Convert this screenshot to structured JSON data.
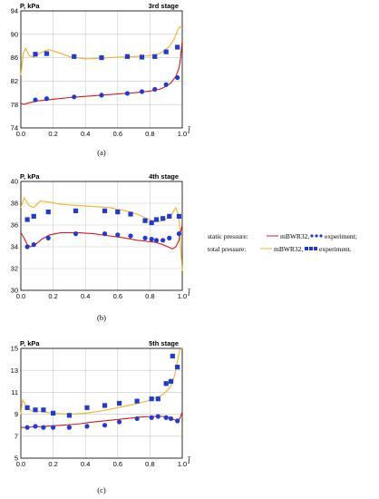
{
  "colors": {
    "static_line": "#d7191c",
    "total_line": "#f0b428",
    "static_exp": "#1f3bd6",
    "total_exp": "#1f3bd6",
    "grid": "#c8c8c8"
  },
  "legend": {
    "static_label": "static pressure:",
    "static_model": "mBWR32,",
    "static_exp": "experiment;",
    "total_label": "total pressure:",
    "total_model": "mBWR32,",
    "total_exp": "experiment."
  },
  "chart_data": [
    {
      "type": "line",
      "caption": "(a)",
      "panel_label": "3rd stage",
      "ylabel": "P, kPa",
      "xlabel": "l̄",
      "xlim": [
        0.0,
        1.0
      ],
      "ylim": [
        74,
        94
      ],
      "xticks": [
        "0.0",
        "0.2",
        "0.4",
        "0.6",
        "0.8",
        "1.0"
      ],
      "yticks": [
        "74",
        "78",
        "82",
        "86",
        "90",
        "94"
      ],
      "grid": true,
      "series": [
        {
          "name": "total pressure: mBWR32",
          "kind": "line",
          "color_key": "total_line",
          "x": [
            0.0,
            0.015,
            0.03,
            0.05,
            0.08,
            0.12,
            0.17,
            0.23,
            0.3,
            0.4,
            0.5,
            0.6,
            0.7,
            0.78,
            0.84,
            0.88,
            0.92,
            0.95,
            0.97,
            0.985,
            1.0
          ],
          "y": [
            83.0,
            86.8,
            87.6,
            86.4,
            86.1,
            86.8,
            87.4,
            86.9,
            86.2,
            85.8,
            85.9,
            86.1,
            86.2,
            86.3,
            86.5,
            87.0,
            87.9,
            89.2,
            90.6,
            91.3,
            91.1
          ]
        },
        {
          "name": "static pressure: mBWR32",
          "kind": "line",
          "color_key": "static_line",
          "x": [
            0.0,
            0.02,
            0.05,
            0.1,
            0.2,
            0.3,
            0.4,
            0.5,
            0.6,
            0.7,
            0.8,
            0.86,
            0.9,
            0.93,
            0.96,
            0.98,
            0.99,
            1.0
          ],
          "y": [
            78.2,
            78.0,
            78.3,
            78.6,
            78.9,
            79.2,
            79.4,
            79.6,
            79.8,
            80.0,
            80.3,
            80.6,
            81.1,
            81.7,
            82.8,
            84.2,
            86.0,
            89.0
          ]
        },
        {
          "name": "total pressure: experiment",
          "kind": "square",
          "color_key": "total_exp",
          "x": [
            0.09,
            0.16,
            0.33,
            0.5,
            0.66,
            0.75,
            0.83,
            0.9,
            0.97
          ],
          "y": [
            86.6,
            86.7,
            86.2,
            86.0,
            86.2,
            86.1,
            86.2,
            87.0,
            87.8
          ]
        },
        {
          "name": "static pressure: experiment",
          "kind": "circle",
          "color_key": "static_exp",
          "x": [
            0.09,
            0.16,
            0.33,
            0.5,
            0.66,
            0.75,
            0.83,
            0.9,
            0.97
          ],
          "y": [
            78.8,
            79.0,
            79.3,
            79.6,
            79.9,
            80.2,
            80.6,
            81.4,
            82.6
          ]
        }
      ]
    },
    {
      "type": "line",
      "caption": "(b)",
      "panel_label": "4th stage",
      "ylabel": "P, kPa",
      "xlabel": "l̄",
      "xlim": [
        0.0,
        1.0
      ],
      "ylim": [
        30,
        40
      ],
      "xticks": [
        "0.0",
        "0.2",
        "0.4",
        "0.6",
        "0.8",
        "1.0"
      ],
      "yticks": [
        "30",
        "32",
        "34",
        "36",
        "38",
        "40"
      ],
      "grid": true,
      "series": [
        {
          "name": "total pressure: mBWR32",
          "kind": "line",
          "color_key": "total_line",
          "x": [
            0.0,
            0.02,
            0.05,
            0.08,
            0.12,
            0.18,
            0.25,
            0.35,
            0.45,
            0.55,
            0.65,
            0.72,
            0.78,
            0.84,
            0.88,
            0.91,
            0.94,
            0.96,
            0.98,
            0.99,
            1.0
          ],
          "y": [
            37.6,
            38.5,
            37.8,
            37.6,
            38.2,
            38.1,
            37.9,
            37.8,
            37.7,
            37.6,
            37.3,
            37.0,
            36.6,
            36.3,
            36.4,
            36.6,
            37.1,
            37.6,
            36.8,
            34.0,
            31.8
          ]
        },
        {
          "name": "static pressure: mBWR32",
          "kind": "line",
          "color_key": "static_line",
          "x": [
            0.0,
            0.02,
            0.04,
            0.06,
            0.09,
            0.13,
            0.18,
            0.25,
            0.35,
            0.45,
            0.55,
            0.65,
            0.72,
            0.78,
            0.84,
            0.88,
            0.91,
            0.94,
            0.96,
            0.98,
            0.99,
            1.0
          ],
          "y": [
            35.3,
            34.8,
            34.2,
            34.0,
            34.2,
            34.7,
            35.1,
            35.3,
            35.3,
            35.2,
            35.0,
            34.8,
            34.6,
            34.5,
            34.4,
            34.2,
            34.0,
            33.8,
            34.0,
            34.6,
            35.4,
            36.0
          ]
        },
        {
          "name": "total pressure: experiment",
          "kind": "square",
          "color_key": "total_exp",
          "x": [
            0.04,
            0.08,
            0.17,
            0.34,
            0.52,
            0.6,
            0.68,
            0.77,
            0.81,
            0.84,
            0.88,
            0.92,
            0.98
          ],
          "y": [
            36.5,
            36.8,
            37.2,
            37.3,
            37.3,
            37.2,
            37.0,
            36.4,
            36.2,
            36.5,
            36.6,
            36.8,
            36.8
          ]
        },
        {
          "name": "static pressure: experiment",
          "kind": "circle",
          "color_key": "static_exp",
          "x": [
            0.04,
            0.08,
            0.17,
            0.34,
            0.52,
            0.6,
            0.68,
            0.77,
            0.81,
            0.84,
            0.88,
            0.92,
            0.98
          ],
          "y": [
            34.0,
            34.2,
            34.8,
            35.2,
            35.2,
            35.1,
            35.0,
            34.8,
            34.7,
            34.6,
            34.6,
            34.8,
            35.2
          ]
        }
      ]
    },
    {
      "type": "line",
      "caption": "(c)",
      "panel_label": "5th stage",
      "ylabel": "P, kPa",
      "xlabel": "l̄",
      "xlim": [
        0.0,
        1.0
      ],
      "ylim": [
        5,
        15
      ],
      "xticks": [
        "0.0",
        "0.2",
        "0.4",
        "0.6",
        "0.8",
        "1.0"
      ],
      "yticks": [
        "5",
        "7",
        "9",
        "11",
        "13",
        "15"
      ],
      "grid": true,
      "series": [
        {
          "name": "total pressure: mBWR32",
          "kind": "line",
          "color_key": "total_line",
          "x": [
            0.0,
            0.01,
            0.02,
            0.04,
            0.07,
            0.1,
            0.15,
            0.2,
            0.3,
            0.4,
            0.5,
            0.6,
            0.7,
            0.78,
            0.84,
            0.88,
            0.91,
            0.93,
            0.95,
            0.97,
            0.985,
            1.0
          ],
          "y": [
            9.0,
            10.3,
            10.1,
            9.5,
            9.3,
            9.3,
            9.2,
            9.1,
            9.0,
            9.1,
            9.3,
            9.6,
            9.9,
            10.2,
            10.5,
            10.8,
            11.2,
            11.6,
            12.4,
            13.8,
            14.9,
            15.0
          ]
        },
        {
          "name": "static pressure: mBWR32",
          "kind": "line",
          "color_key": "static_line",
          "x": [
            0.0,
            0.03,
            0.08,
            0.15,
            0.25,
            0.35,
            0.45,
            0.55,
            0.65,
            0.75,
            0.82,
            0.88,
            0.92,
            0.95,
            0.97,
            0.985,
            1.0
          ],
          "y": [
            7.8,
            7.8,
            7.85,
            7.9,
            8.0,
            8.1,
            8.3,
            8.45,
            8.6,
            8.75,
            8.8,
            8.8,
            8.7,
            8.5,
            8.4,
            8.6,
            9.2
          ]
        },
        {
          "name": "total pressure: experiment",
          "kind": "square",
          "color_key": "total_exp",
          "x": [
            0.04,
            0.09,
            0.14,
            0.2,
            0.3,
            0.41,
            0.52,
            0.61,
            0.72,
            0.81,
            0.85,
            0.9,
            0.93,
            0.94,
            0.97
          ],
          "y": [
            9.6,
            9.4,
            9.4,
            9.1,
            8.9,
            9.6,
            9.8,
            10.0,
            10.2,
            10.4,
            10.4,
            11.8,
            12.0,
            14.3,
            13.3
          ]
        },
        {
          "name": "static pressure: experiment",
          "kind": "circle",
          "color_key": "static_exp",
          "x": [
            0.04,
            0.09,
            0.14,
            0.2,
            0.3,
            0.41,
            0.52,
            0.61,
            0.72,
            0.81,
            0.85,
            0.9,
            0.93,
            0.97
          ],
          "y": [
            7.8,
            7.9,
            7.8,
            7.8,
            7.8,
            7.9,
            8.0,
            8.3,
            8.6,
            8.7,
            8.8,
            8.7,
            8.6,
            8.4
          ]
        }
      ]
    }
  ]
}
